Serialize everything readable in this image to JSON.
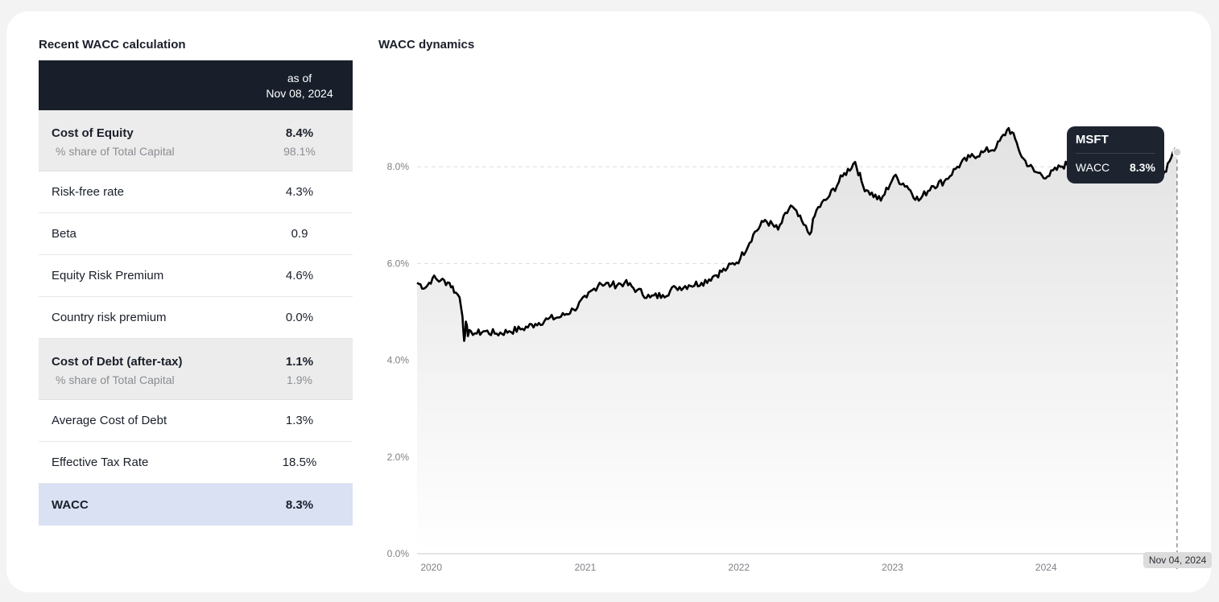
{
  "table": {
    "title": "Recent WACC calculation",
    "header": {
      "line1": "as of",
      "line2": "Nov 08, 2024"
    },
    "cost_of_equity": {
      "label": "Cost of Equity",
      "value": "8.4%",
      "share_label": "% share of Total Capital",
      "share_value": "98.1%"
    },
    "rows_equity": [
      {
        "label": "Risk-free rate",
        "value": "4.3%"
      },
      {
        "label": "Beta",
        "value": "0.9"
      },
      {
        "label": "Equity Risk Premium",
        "value": "4.6%"
      },
      {
        "label": "Country risk premium",
        "value": "0.0%"
      }
    ],
    "cost_of_debt": {
      "label": "Cost of Debt (after-tax)",
      "value": "1.1%",
      "share_label": "% share of Total Capital",
      "share_value": "1.9%"
    },
    "rows_debt": [
      {
        "label": "Average Cost of Debt",
        "value": "1.3%"
      },
      {
        "label": "Effective Tax Rate",
        "value": "18.5%"
      }
    ],
    "wacc": {
      "label": "WACC",
      "value": "8.3%"
    }
  },
  "chart": {
    "title": "WACC dynamics",
    "hover_date": "Nov 04, 2024",
    "tooltip": {
      "title": "MSFT",
      "label": "WACC",
      "value": "8.3%"
    }
  },
  "chart_data": {
    "type": "area",
    "title": "WACC dynamics",
    "y_ticks": [
      "0.0%",
      "2.0%",
      "4.0%",
      "6.0%",
      "8.0%"
    ],
    "x_ticks": [
      "2020",
      "2021",
      "2022",
      "2023",
      "2024"
    ],
    "ylim": [
      0,
      10
    ],
    "xlim": [
      "2019-11-25",
      "2024-11-08"
    ],
    "grid": true,
    "colors": {
      "line": "#000000",
      "fill_top": "#e2e2e2",
      "fill_bottom": "#ffffff",
      "grid": "#dddddd"
    },
    "series": [
      {
        "name": "MSFT",
        "x": [
          "2019-11-25",
          "2019-12-15",
          "2020-01-01",
          "2020-01-20",
          "2020-02-10",
          "2020-02-25",
          "2020-03-05",
          "2020-03-12",
          "2020-03-16",
          "2020-03-20",
          "2020-03-25",
          "2020-04-01",
          "2020-04-15",
          "2020-05-01",
          "2020-06-01",
          "2020-07-01",
          "2020-08-01",
          "2020-09-01",
          "2020-10-01",
          "2020-11-01",
          "2020-12-01",
          "2021-01-01",
          "2021-02-01",
          "2021-03-01",
          "2021-04-01",
          "2021-05-01",
          "2021-06-01",
          "2021-07-01",
          "2021-08-01",
          "2021-09-01",
          "2021-10-01",
          "2021-11-01",
          "2021-12-01",
          "2022-01-01",
          "2022-02-01",
          "2022-03-01",
          "2022-04-01",
          "2022-05-01",
          "2022-06-01",
          "2022-06-15",
          "2022-07-01",
          "2022-08-01",
          "2022-09-01",
          "2022-10-01",
          "2022-10-20",
          "2022-11-01",
          "2022-12-01",
          "2023-01-01",
          "2023-02-01",
          "2023-03-01",
          "2023-04-01",
          "2023-05-01",
          "2023-06-01",
          "2023-07-01",
          "2023-08-01",
          "2023-09-01",
          "2023-10-01",
          "2023-10-20",
          "2023-11-01",
          "2023-12-01",
          "2024-01-01",
          "2024-02-01",
          "2024-03-01",
          "2024-04-01",
          "2024-05-01",
          "2024-06-01",
          "2024-07-01",
          "2024-08-01",
          "2024-09-01",
          "2024-10-01",
          "2024-10-25",
          "2024-11-04"
        ],
        "values": [
          5.6,
          5.5,
          5.7,
          5.65,
          5.6,
          5.4,
          5.3,
          4.9,
          4.4,
          4.8,
          4.5,
          4.6,
          4.55,
          4.6,
          4.55,
          4.6,
          4.65,
          4.75,
          4.85,
          4.9,
          5.05,
          5.3,
          5.6,
          5.55,
          5.6,
          5.45,
          5.3,
          5.35,
          5.5,
          5.55,
          5.6,
          5.75,
          5.9,
          6.1,
          6.6,
          6.9,
          6.7,
          7.2,
          6.8,
          6.6,
          7.1,
          7.4,
          7.8,
          8.1,
          7.6,
          7.5,
          7.3,
          7.8,
          7.6,
          7.3,
          7.6,
          7.7,
          8.0,
          8.2,
          8.3,
          8.4,
          8.8,
          8.5,
          8.2,
          7.9,
          7.8,
          8.0,
          8.1,
          7.9,
          8.2,
          8.4,
          8.2,
          8.0,
          7.9,
          7.8,
          8.3,
          8.3
        ]
      }
    ]
  }
}
